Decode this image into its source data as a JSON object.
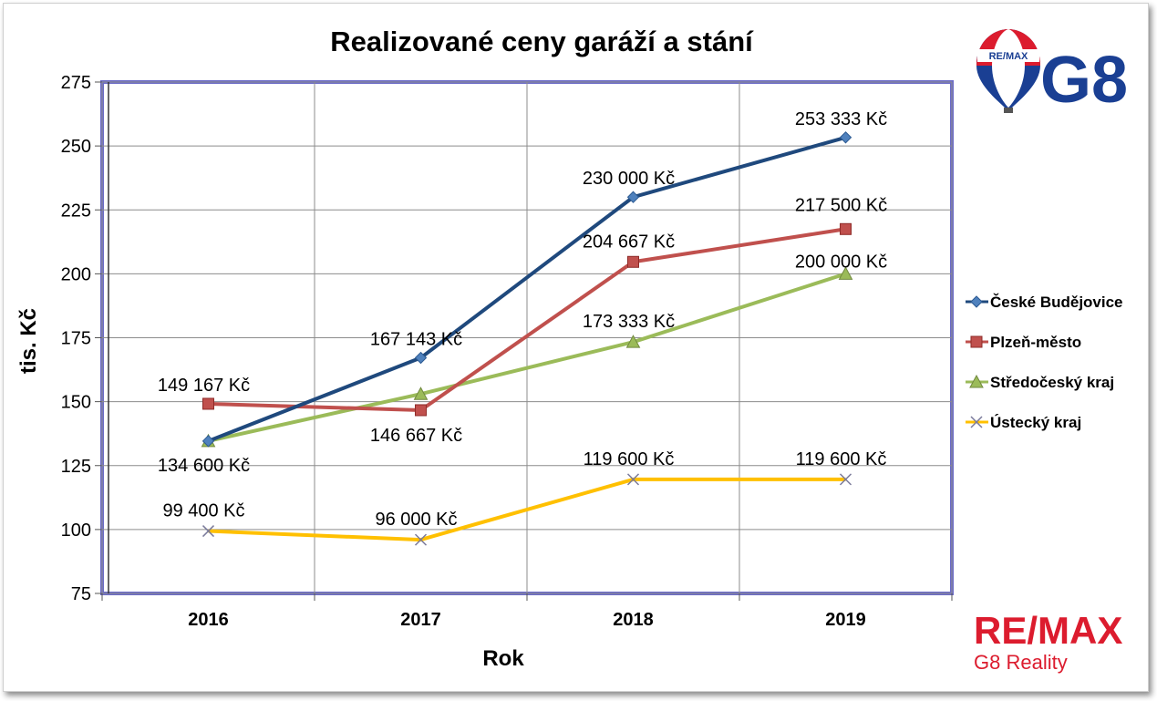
{
  "chart_data": {
    "type": "line",
    "title": "Realizované ceny garáží a stání",
    "xlabel": "Rok",
    "ylabel": "tis. Kč",
    "ylim": [
      75,
      275
    ],
    "yticks": [
      75,
      100,
      125,
      150,
      175,
      200,
      225,
      250,
      275
    ],
    "categories": [
      "2016",
      "2017",
      "2018",
      "2019"
    ],
    "grid": true,
    "legend_position": "right",
    "series": [
      {
        "name": "České Budějovice",
        "color": "#1f497d",
        "marker": "diamond",
        "values": [
          134.6,
          167.143,
          230.0,
          253.333
        ],
        "labels": [
          "134 600 Kč",
          "167 143 Kč",
          "230 000 Kč",
          "253 333 Kč"
        ]
      },
      {
        "name": "Plzeň-město",
        "color": "#c0504d",
        "marker": "square",
        "values": [
          149.167,
          146.667,
          204.667,
          217.5
        ],
        "labels": [
          "149 167 Kč",
          "146 667 Kč",
          "204 667 Kč",
          "217 500 Kč"
        ]
      },
      {
        "name": "Středočeský kraj",
        "color": "#9bbb59",
        "marker": "triangle",
        "values": [
          134.6,
          153.0,
          173.333,
          200.0
        ],
        "labels": [
          "",
          "",
          "173 333 Kč",
          "200 000 Kč"
        ]
      },
      {
        "name": "Ústecký kraj",
        "color": "#ffc000",
        "marker": "x",
        "values": [
          99.4,
          96.0,
          119.6,
          119.6
        ],
        "labels": [
          "99 400 Kč",
          "96 000 Kč",
          "119 600 Kč",
          "119 600 Kč"
        ]
      }
    ]
  },
  "branding": {
    "balloon_text": "RE/MAX",
    "logo_g8": "G8",
    "logo_remax": "RE/MAX",
    "logo_subtitle": "G8 Reality",
    "brand_red": "#dc1c2e",
    "brand_blue": "#1a3f93"
  }
}
